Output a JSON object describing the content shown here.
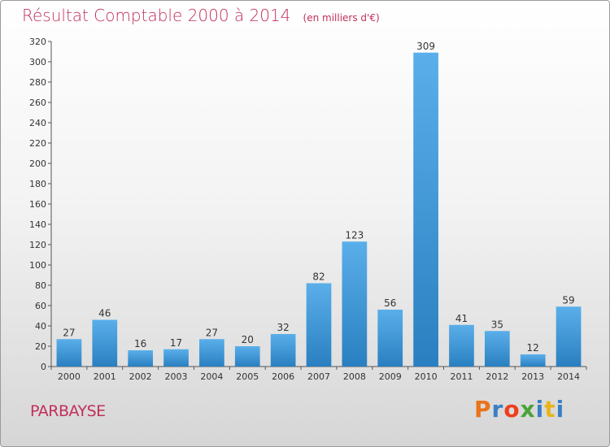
{
  "header": {
    "title": "Résultat Comptable 2000 à 2014",
    "subtitle": "(en milliers d'€)"
  },
  "commune": "PARBAYSE",
  "logo": {
    "text": "Proxiti",
    "letter_colors": [
      "#e8731c",
      "#3a7fc4",
      "#ee3e1c",
      "#4aa33a",
      "#3a7fc4",
      "#e8b41c",
      "#3a7fc4"
    ]
  },
  "chart_data": {
    "type": "bar",
    "title": "Résultat Comptable 2000 à 2014",
    "subtitle": "(en milliers d'€)",
    "categories": [
      "2000",
      "2001",
      "2002",
      "2003",
      "2004",
      "2005",
      "2006",
      "2007",
      "2008",
      "2009",
      "2010",
      "2011",
      "2012",
      "2013",
      "2014"
    ],
    "values": [
      27,
      46,
      16,
      17,
      27,
      20,
      32,
      82,
      123,
      56,
      309,
      41,
      35,
      12,
      59
    ],
    "ylim": [
      0,
      320
    ],
    "yticks": [
      0,
      20,
      40,
      60,
      80,
      100,
      120,
      140,
      160,
      180,
      200,
      220,
      240,
      260,
      280,
      300,
      320
    ],
    "grid": false,
    "bar_color_top": "#5aafea",
    "bar_color_bottom": "#2a7fc0"
  }
}
